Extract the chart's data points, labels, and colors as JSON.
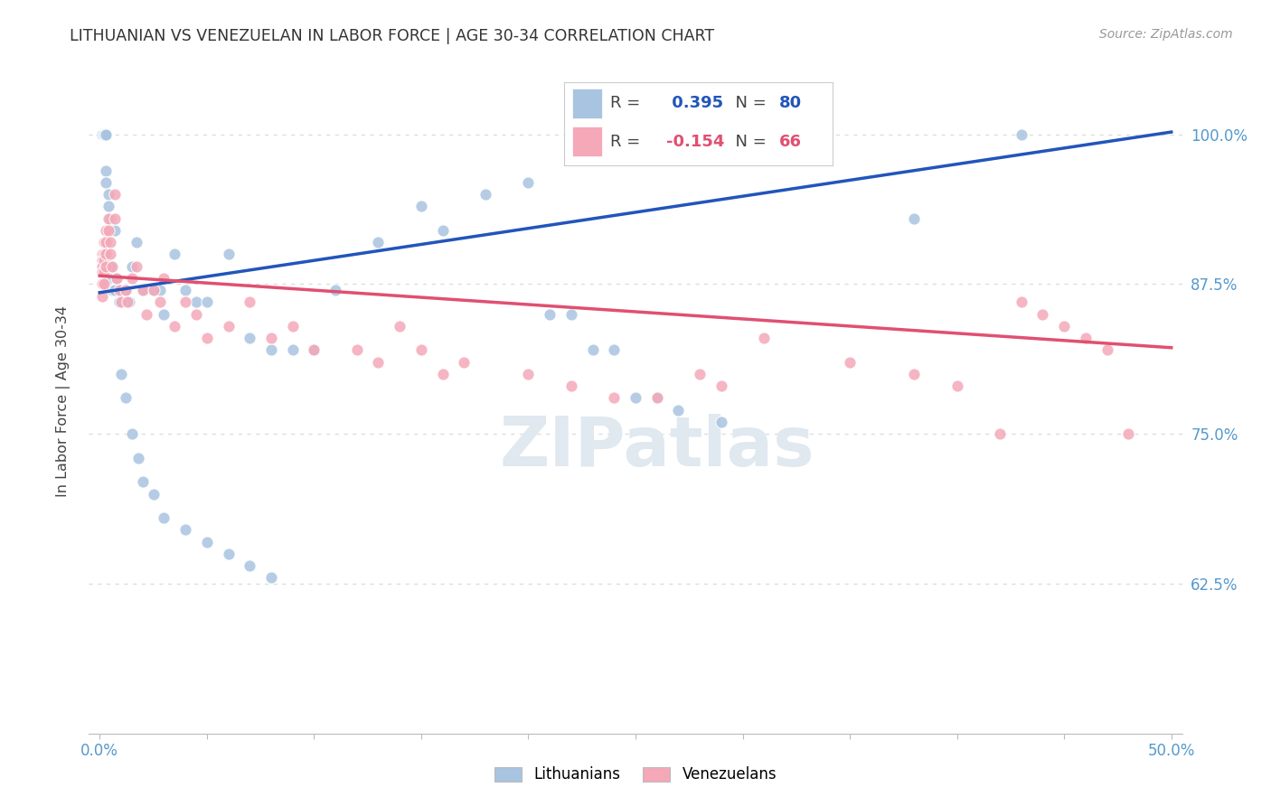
{
  "title": "LITHUANIAN VS VENEZUELAN IN LABOR FORCE | AGE 30-34 CORRELATION CHART",
  "source": "Source: ZipAtlas.com",
  "ylabel": "In Labor Force | Age 30-34",
  "xlim": [
    -0.005,
    0.505
  ],
  "ylim": [
    0.5,
    1.055
  ],
  "blue_R": 0.395,
  "blue_N": 80,
  "pink_R": -0.154,
  "pink_N": 66,
  "blue_color": "#a8c4e0",
  "pink_color": "#f4a8b8",
  "blue_line_color": "#2255bb",
  "pink_line_color": "#e05070",
  "watermark": "ZIPatlas",
  "legend_blue_label": "Lithuanians",
  "legend_pink_label": "Venezuelans",
  "blue_line_y0": 0.868,
  "blue_line_y1": 1.002,
  "pink_line_y0": 0.882,
  "pink_line_y1": 0.822,
  "ytick_positions": [
    0.625,
    0.75,
    0.875,
    1.0
  ],
  "ytick_labels": [
    "62.5%",
    "75.0%",
    "87.5%",
    "100.0%"
  ],
  "tick_color": "#5599cc",
  "grid_color": "#dddddd",
  "blue_x": [
    0.001,
    0.001,
    0.001,
    0.001,
    0.001,
    0.001,
    0.001,
    0.001,
    0.001,
    0.001,
    0.002,
    0.002,
    0.002,
    0.002,
    0.002,
    0.002,
    0.002,
    0.002,
    0.002,
    0.003,
    0.003,
    0.003,
    0.003,
    0.003,
    0.004,
    0.004,
    0.004,
    0.005,
    0.005,
    0.006,
    0.007,
    0.007,
    0.008,
    0.009,
    0.01,
    0.012,
    0.014,
    0.015,
    0.017,
    0.02,
    0.025,
    0.028,
    0.03,
    0.035,
    0.04,
    0.045,
    0.05,
    0.06,
    0.07,
    0.08,
    0.09,
    0.1,
    0.11,
    0.13,
    0.15,
    0.16,
    0.18,
    0.2,
    0.21,
    0.22,
    0.23,
    0.24,
    0.25,
    0.26,
    0.27,
    0.29,
    0.01,
    0.012,
    0.015,
    0.018,
    0.02,
    0.025,
    0.03,
    0.04,
    0.05,
    0.06,
    0.07,
    0.08,
    0.38,
    0.43
  ],
  "blue_y": [
    1.0,
    1.0,
    1.0,
    1.0,
    1.0,
    1.0,
    1.0,
    1.0,
    1.0,
    1.0,
    1.0,
    1.0,
    1.0,
    1.0,
    1.0,
    1.0,
    1.0,
    1.0,
    1.0,
    1.0,
    1.0,
    1.0,
    0.97,
    0.96,
    0.95,
    0.94,
    0.88,
    0.93,
    0.89,
    0.87,
    0.92,
    0.87,
    0.88,
    0.86,
    0.87,
    0.87,
    0.86,
    0.89,
    0.91,
    0.87,
    0.87,
    0.87,
    0.85,
    0.9,
    0.87,
    0.86,
    0.86,
    0.9,
    0.83,
    0.82,
    0.82,
    0.82,
    0.87,
    0.91,
    0.94,
    0.92,
    0.95,
    0.96,
    0.85,
    0.85,
    0.82,
    0.82,
    0.78,
    0.78,
    0.77,
    0.76,
    0.8,
    0.78,
    0.75,
    0.73,
    0.71,
    0.7,
    0.68,
    0.67,
    0.66,
    0.65,
    0.64,
    0.63,
    0.93,
    1.0
  ],
  "pink_x": [
    0.001,
    0.001,
    0.001,
    0.001,
    0.001,
    0.001,
    0.002,
    0.002,
    0.002,
    0.002,
    0.002,
    0.003,
    0.003,
    0.003,
    0.003,
    0.004,
    0.004,
    0.005,
    0.005,
    0.006,
    0.007,
    0.007,
    0.008,
    0.009,
    0.01,
    0.012,
    0.013,
    0.015,
    0.017,
    0.02,
    0.022,
    0.025,
    0.028,
    0.03,
    0.035,
    0.04,
    0.045,
    0.05,
    0.06,
    0.07,
    0.08,
    0.09,
    0.1,
    0.12,
    0.13,
    0.14,
    0.15,
    0.16,
    0.17,
    0.2,
    0.22,
    0.24,
    0.26,
    0.28,
    0.29,
    0.31,
    0.35,
    0.38,
    0.4,
    0.42,
    0.43,
    0.44,
    0.45,
    0.46,
    0.47,
    0.48
  ],
  "pink_y": [
    0.9,
    0.895,
    0.89,
    0.885,
    0.875,
    0.865,
    0.91,
    0.9,
    0.895,
    0.885,
    0.875,
    0.92,
    0.91,
    0.9,
    0.89,
    0.93,
    0.92,
    0.91,
    0.9,
    0.89,
    0.95,
    0.93,
    0.88,
    0.87,
    0.86,
    0.87,
    0.86,
    0.88,
    0.89,
    0.87,
    0.85,
    0.87,
    0.86,
    0.88,
    0.84,
    0.86,
    0.85,
    0.83,
    0.84,
    0.86,
    0.83,
    0.84,
    0.82,
    0.82,
    0.81,
    0.84,
    0.82,
    0.8,
    0.81,
    0.8,
    0.79,
    0.78,
    0.78,
    0.8,
    0.79,
    0.83,
    0.81,
    0.8,
    0.79,
    0.75,
    0.86,
    0.85,
    0.84,
    0.83,
    0.82,
    0.75
  ]
}
